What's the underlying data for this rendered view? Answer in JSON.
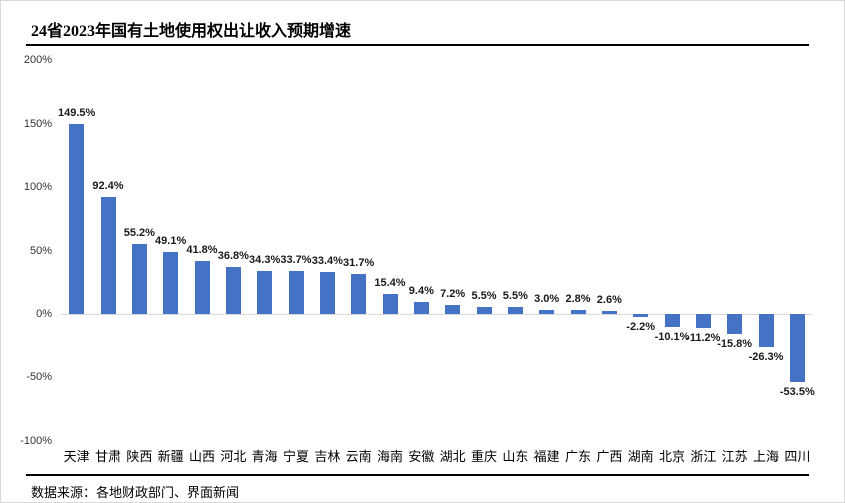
{
  "header": {
    "title": "24省2023年国有土地使用权出让收入预期增速"
  },
  "footer": {
    "source": "数据来源：各地财政部门、界面新闻"
  },
  "chart_data": {
    "type": "bar",
    "title": "24省2023年国有土地使用权出让收入预期增速",
    "categories": [
      "天津",
      "甘肃",
      "陕西",
      "新疆",
      "山西",
      "河北",
      "青海",
      "宁夏",
      "吉林",
      "云南",
      "海南",
      "安徽",
      "湖北",
      "重庆",
      "山东",
      "福建",
      "广东",
      "广西",
      "湖南",
      "北京",
      "浙江",
      "江苏",
      "上海",
      "四川"
    ],
    "values": [
      149.5,
      92.4,
      55.2,
      49.1,
      41.8,
      36.8,
      34.3,
      33.7,
      33.4,
      31.7,
      15.4,
      9.4,
      7.2,
      5.5,
      5.5,
      3.0,
      2.8,
      2.6,
      -2.2,
      -10.1,
      -11.2,
      -15.8,
      -26.3,
      -53.5
    ],
    "data_labels": [
      "149.5%",
      "92.4%",
      "55.2%",
      "49.1%",
      "41.8%",
      "36.8%",
      "34.3%",
      "33.7%",
      "33.4%",
      "31.7%",
      "15.4%",
      "9.4%",
      "7.2%",
      "5.5%",
      "5.5%",
      "3.0%",
      "2.8%",
      "2.6%",
      "-2.2%",
      "-10.1%",
      "-11.2%",
      "-15.8%",
      "-26.3%",
      "-53.5%"
    ],
    "xlabel": "",
    "ylabel": "",
    "ylim": [
      -100,
      200
    ],
    "ytick_values": [
      200,
      150,
      100,
      50,
      0,
      -50,
      -100
    ],
    "ytick_labels": [
      "200%",
      "150%",
      "100%",
      "50%",
      "0%",
      "-50%",
      "-100%"
    ],
    "grid": false,
    "legend": false,
    "bar_color": "#4472C4",
    "axis_line_color": "#d9d9d9",
    "label_color": "#1a1a1a",
    "value_suffix": "%"
  }
}
